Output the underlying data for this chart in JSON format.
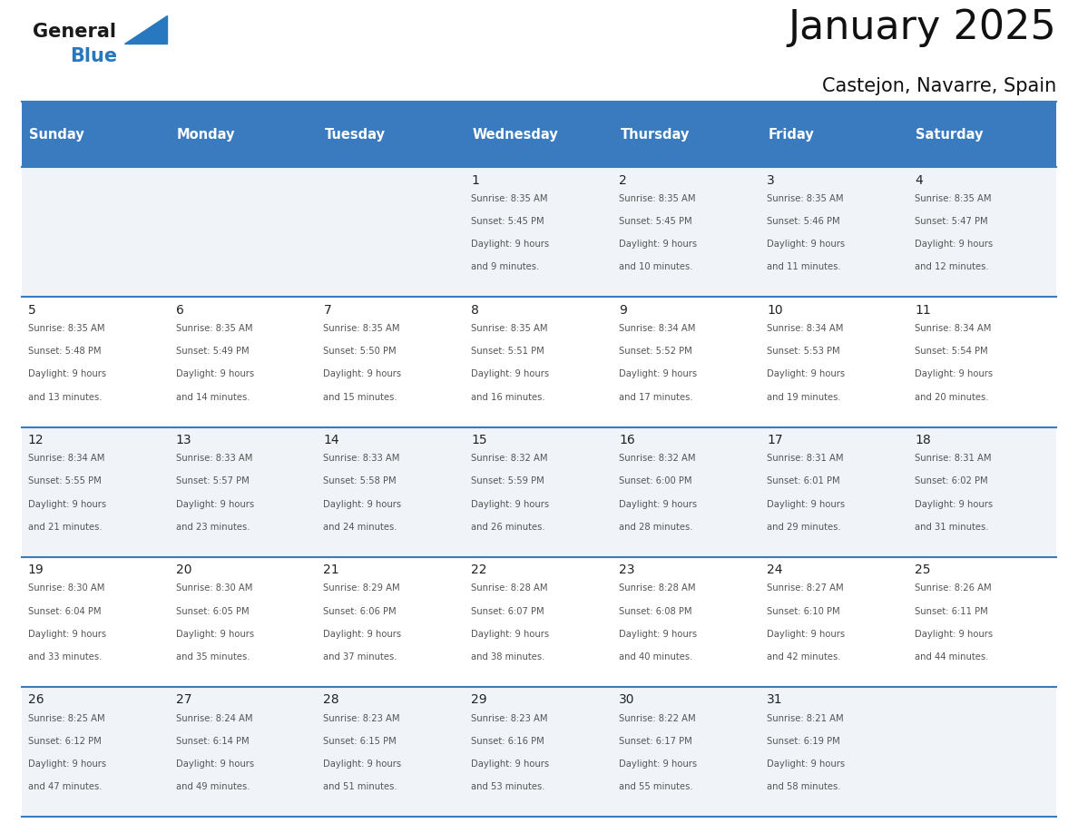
{
  "title": "January 2025",
  "subtitle": "Castejon, Navarre, Spain",
  "days_of_week": [
    "Sunday",
    "Monday",
    "Tuesday",
    "Wednesday",
    "Thursday",
    "Friday",
    "Saturday"
  ],
  "header_bg": "#3a7bbf",
  "header_text": "#ffffff",
  "row_bg_light": "#f0f4f8",
  "row_bg_white": "#ffffff",
  "grid_line_color": "#3a7bbf",
  "text_color_dark": "#222222",
  "text_color_info": "#555555",
  "logo_general_color": "#1a1a1a",
  "logo_blue_color": "#2878c0",
  "calendar_data": [
    {
      "day": 1,
      "col": 3,
      "row": 0,
      "sunrise": "8:35 AM",
      "sunset": "5:45 PM",
      "dl1": "Daylight: 9 hours",
      "dl2": "and 9 minutes."
    },
    {
      "day": 2,
      "col": 4,
      "row": 0,
      "sunrise": "8:35 AM",
      "sunset": "5:45 PM",
      "dl1": "Daylight: 9 hours",
      "dl2": "and 10 minutes."
    },
    {
      "day": 3,
      "col": 5,
      "row": 0,
      "sunrise": "8:35 AM",
      "sunset": "5:46 PM",
      "dl1": "Daylight: 9 hours",
      "dl2": "and 11 minutes."
    },
    {
      "day": 4,
      "col": 6,
      "row": 0,
      "sunrise": "8:35 AM",
      "sunset": "5:47 PM",
      "dl1": "Daylight: 9 hours",
      "dl2": "and 12 minutes."
    },
    {
      "day": 5,
      "col": 0,
      "row": 1,
      "sunrise": "8:35 AM",
      "sunset": "5:48 PM",
      "dl1": "Daylight: 9 hours",
      "dl2": "and 13 minutes."
    },
    {
      "day": 6,
      "col": 1,
      "row": 1,
      "sunrise": "8:35 AM",
      "sunset": "5:49 PM",
      "dl1": "Daylight: 9 hours",
      "dl2": "and 14 minutes."
    },
    {
      "day": 7,
      "col": 2,
      "row": 1,
      "sunrise": "8:35 AM",
      "sunset": "5:50 PM",
      "dl1": "Daylight: 9 hours",
      "dl2": "and 15 minutes."
    },
    {
      "day": 8,
      "col": 3,
      "row": 1,
      "sunrise": "8:35 AM",
      "sunset": "5:51 PM",
      "dl1": "Daylight: 9 hours",
      "dl2": "and 16 minutes."
    },
    {
      "day": 9,
      "col": 4,
      "row": 1,
      "sunrise": "8:34 AM",
      "sunset": "5:52 PM",
      "dl1": "Daylight: 9 hours",
      "dl2": "and 17 minutes."
    },
    {
      "day": 10,
      "col": 5,
      "row": 1,
      "sunrise": "8:34 AM",
      "sunset": "5:53 PM",
      "dl1": "Daylight: 9 hours",
      "dl2": "and 19 minutes."
    },
    {
      "day": 11,
      "col": 6,
      "row": 1,
      "sunrise": "8:34 AM",
      "sunset": "5:54 PM",
      "dl1": "Daylight: 9 hours",
      "dl2": "and 20 minutes."
    },
    {
      "day": 12,
      "col": 0,
      "row": 2,
      "sunrise": "8:34 AM",
      "sunset": "5:55 PM",
      "dl1": "Daylight: 9 hours",
      "dl2": "and 21 minutes."
    },
    {
      "day": 13,
      "col": 1,
      "row": 2,
      "sunrise": "8:33 AM",
      "sunset": "5:57 PM",
      "dl1": "Daylight: 9 hours",
      "dl2": "and 23 minutes."
    },
    {
      "day": 14,
      "col": 2,
      "row": 2,
      "sunrise": "8:33 AM",
      "sunset": "5:58 PM",
      "dl1": "Daylight: 9 hours",
      "dl2": "and 24 minutes."
    },
    {
      "day": 15,
      "col": 3,
      "row": 2,
      "sunrise": "8:32 AM",
      "sunset": "5:59 PM",
      "dl1": "Daylight: 9 hours",
      "dl2": "and 26 minutes."
    },
    {
      "day": 16,
      "col": 4,
      "row": 2,
      "sunrise": "8:32 AM",
      "sunset": "6:00 PM",
      "dl1": "Daylight: 9 hours",
      "dl2": "and 28 minutes."
    },
    {
      "day": 17,
      "col": 5,
      "row": 2,
      "sunrise": "8:31 AM",
      "sunset": "6:01 PM",
      "dl1": "Daylight: 9 hours",
      "dl2": "and 29 minutes."
    },
    {
      "day": 18,
      "col": 6,
      "row": 2,
      "sunrise": "8:31 AM",
      "sunset": "6:02 PM",
      "dl1": "Daylight: 9 hours",
      "dl2": "and 31 minutes."
    },
    {
      "day": 19,
      "col": 0,
      "row": 3,
      "sunrise": "8:30 AM",
      "sunset": "6:04 PM",
      "dl1": "Daylight: 9 hours",
      "dl2": "and 33 minutes."
    },
    {
      "day": 20,
      "col": 1,
      "row": 3,
      "sunrise": "8:30 AM",
      "sunset": "6:05 PM",
      "dl1": "Daylight: 9 hours",
      "dl2": "and 35 minutes."
    },
    {
      "day": 21,
      "col": 2,
      "row": 3,
      "sunrise": "8:29 AM",
      "sunset": "6:06 PM",
      "dl1": "Daylight: 9 hours",
      "dl2": "and 37 minutes."
    },
    {
      "day": 22,
      "col": 3,
      "row": 3,
      "sunrise": "8:28 AM",
      "sunset": "6:07 PM",
      "dl1": "Daylight: 9 hours",
      "dl2": "and 38 minutes."
    },
    {
      "day": 23,
      "col": 4,
      "row": 3,
      "sunrise": "8:28 AM",
      "sunset": "6:08 PM",
      "dl1": "Daylight: 9 hours",
      "dl2": "and 40 minutes."
    },
    {
      "day": 24,
      "col": 5,
      "row": 3,
      "sunrise": "8:27 AM",
      "sunset": "6:10 PM",
      "dl1": "Daylight: 9 hours",
      "dl2": "and 42 minutes."
    },
    {
      "day": 25,
      "col": 6,
      "row": 3,
      "sunrise": "8:26 AM",
      "sunset": "6:11 PM",
      "dl1": "Daylight: 9 hours",
      "dl2": "and 44 minutes."
    },
    {
      "day": 26,
      "col": 0,
      "row": 4,
      "sunrise": "8:25 AM",
      "sunset": "6:12 PM",
      "dl1": "Daylight: 9 hours",
      "dl2": "and 47 minutes."
    },
    {
      "day": 27,
      "col": 1,
      "row": 4,
      "sunrise": "8:24 AM",
      "sunset": "6:14 PM",
      "dl1": "Daylight: 9 hours",
      "dl2": "and 49 minutes."
    },
    {
      "day": 28,
      "col": 2,
      "row": 4,
      "sunrise": "8:23 AM",
      "sunset": "6:15 PM",
      "dl1": "Daylight: 9 hours",
      "dl2": "and 51 minutes."
    },
    {
      "day": 29,
      "col": 3,
      "row": 4,
      "sunrise": "8:23 AM",
      "sunset": "6:16 PM",
      "dl1": "Daylight: 9 hours",
      "dl2": "and 53 minutes."
    },
    {
      "day": 30,
      "col": 4,
      "row": 4,
      "sunrise": "8:22 AM",
      "sunset": "6:17 PM",
      "dl1": "Daylight: 9 hours",
      "dl2": "and 55 minutes."
    },
    {
      "day": 31,
      "col": 5,
      "row": 4,
      "sunrise": "8:21 AM",
      "sunset": "6:19 PM",
      "dl1": "Daylight: 9 hours",
      "dl2": "and 58 minutes."
    }
  ]
}
